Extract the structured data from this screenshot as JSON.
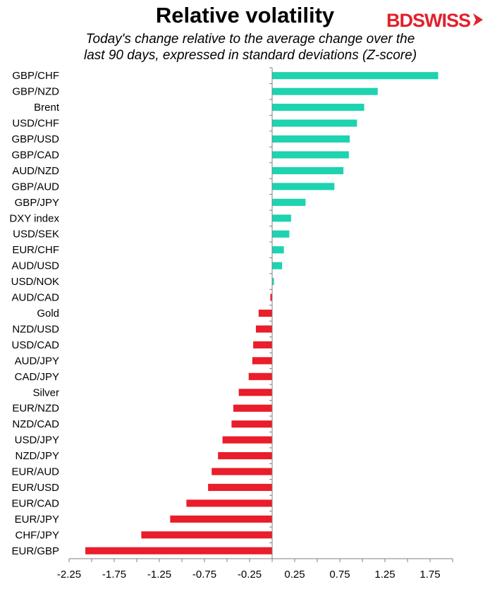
{
  "header": {
    "title": "Relative volatility",
    "subtitle_line1": "Today's change relative to the  average change over the",
    "subtitle_line2": "last 90 days, expressed in standard deviations (Z-score)",
    "logo_text_bd": "BD",
    "logo_text_swiss": "SWISS"
  },
  "colors": {
    "positive": "#1dd3b0",
    "negative": "#ea1d2b",
    "axis": "#808080",
    "brand": "#e3202b"
  },
  "chart_data": {
    "type": "bar",
    "orientation": "horizontal",
    "title": "Relative volatility",
    "subtitle": "Today's change relative to the  average change over the last 90 days, expressed in standard deviations (Z-score)",
    "xlabel": "",
    "ylabel": "",
    "xlim": [
      -2.25,
      2.0
    ],
    "xticks": [
      -2.25,
      -1.75,
      -1.25,
      -0.75,
      -0.25,
      0.25,
      0.75,
      1.25,
      1.75
    ],
    "xtick_labels": [
      "-2.25",
      "-1.75",
      "-1.25",
      "-0.75",
      "-0.25",
      "0.25",
      "0.75",
      "1.25",
      "1.75"
    ],
    "grid": false,
    "legend": "none",
    "categories": [
      "GBP/CHF",
      "GBP/NZD",
      "Brent",
      "USD/CHF",
      "GBP/USD",
      "GBP/CAD",
      "AUD/NZD",
      "GBP/AUD",
      "GBP/JPY",
      "DXY index",
      "USD/SEK",
      "EUR/CHF",
      "AUD/USD",
      "USD/NOK",
      "AUD/CAD",
      "Gold",
      "NZD/USD",
      "USD/CAD",
      "AUD/JPY",
      "CAD/JPY",
      "Silver",
      "EUR/NZD",
      "NZD/CAD",
      "USD/JPY",
      "NZD/JPY",
      "EUR/AUD",
      "EUR/USD",
      "EUR/CAD",
      "EUR/JPY",
      "CHF/JPY",
      "EUR/GBP"
    ],
    "values": [
      1.84,
      1.17,
      1.02,
      0.94,
      0.86,
      0.85,
      0.79,
      0.69,
      0.37,
      0.21,
      0.19,
      0.13,
      0.11,
      0.02,
      -0.02,
      -0.15,
      -0.18,
      -0.21,
      -0.22,
      -0.26,
      -0.37,
      -0.43,
      -0.45,
      -0.55,
      -0.6,
      -0.67,
      -0.71,
      -0.95,
      -1.13,
      -1.45,
      -2.07
    ]
  }
}
